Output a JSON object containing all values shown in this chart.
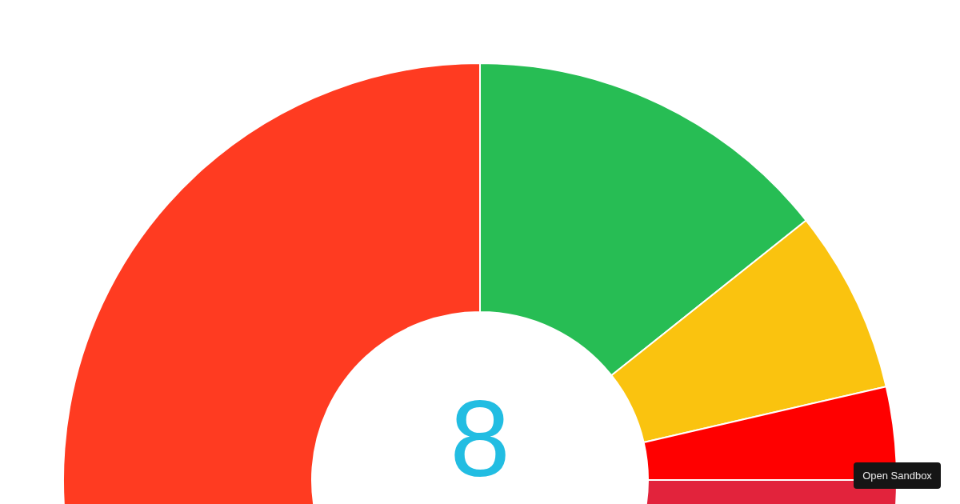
{
  "chart_data": {
    "type": "donut",
    "categories": [
      null,
      null,
      null,
      null,
      null
    ],
    "values": [
      14.3,
      7.1,
      3.6,
      3.6,
      71.4
    ],
    "colors": [
      "#27bd54",
      "#fac30f",
      "#ff0000",
      "#e2233c",
      "#ff3b21"
    ],
    "annotations": [
      "8",
      "Open Sandbox"
    ]
  }
}
